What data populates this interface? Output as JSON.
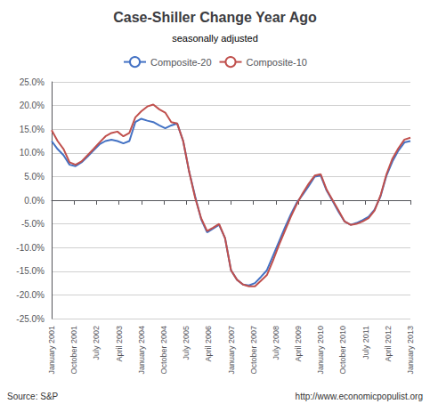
{
  "chart_data": {
    "type": "line",
    "title": "Case-Shiller Change Year Ago",
    "subtitle": "seasonally adjusted",
    "annotations": [
      "Source: S&P",
      "http://www.economicpopulist.org"
    ],
    "x": [
      0,
      1,
      2,
      3,
      4,
      5,
      6,
      7,
      8,
      9,
      10,
      11,
      12,
      13,
      14,
      15,
      16,
      17,
      18,
      19,
      20,
      21,
      22,
      23,
      24,
      25,
      26,
      27,
      28,
      29,
      30,
      31,
      32,
      33,
      34,
      35,
      36,
      37,
      38,
      39,
      40,
      41,
      42,
      43,
      44,
      45,
      46,
      47,
      48,
      49,
      50,
      51,
      52,
      53,
      54,
      55,
      56,
      57,
      58,
      59,
      60
    ],
    "series": [
      {
        "name": "Composite-20",
        "color": "#4472C4",
        "values": [
          0.125,
          0.108,
          0.095,
          0.075,
          0.072,
          0.08,
          0.092,
          0.105,
          0.118,
          0.125,
          0.128,
          0.125,
          0.12,
          0.125,
          0.165,
          0.172,
          0.168,
          0.165,
          0.158,
          0.152,
          0.158,
          0.162,
          0.125,
          0.06,
          0.008,
          -0.04,
          -0.068,
          -0.06,
          -0.052,
          -0.08,
          -0.148,
          -0.168,
          -0.178,
          -0.18,
          -0.175,
          -0.162,
          -0.148,
          -0.118,
          -0.088,
          -0.058,
          -0.03,
          -0.005,
          0.012,
          0.03,
          0.05,
          0.052,
          0.02,
          -0.002,
          -0.025,
          -0.045,
          -0.052,
          -0.048,
          -0.042,
          -0.035,
          -0.02,
          0.008,
          0.052,
          0.082,
          0.105,
          0.122,
          0.125
        ]
      },
      {
        "name": "Composite-10",
        "color": "#C0504D",
        "values": [
          0.148,
          0.125,
          0.108,
          0.08,
          0.075,
          0.082,
          0.095,
          0.108,
          0.122,
          0.135,
          0.142,
          0.145,
          0.135,
          0.142,
          0.175,
          0.188,
          0.198,
          0.202,
          0.192,
          0.185,
          0.165,
          0.162,
          0.125,
          0.06,
          0.005,
          -0.038,
          -0.065,
          -0.058,
          -0.05,
          -0.08,
          -0.148,
          -0.168,
          -0.178,
          -0.182,
          -0.182,
          -0.17,
          -0.158,
          -0.128,
          -0.095,
          -0.065,
          -0.035,
          -0.008,
          0.015,
          0.035,
          0.052,
          0.055,
          0.022,
          0.0,
          -0.022,
          -0.045,
          -0.052,
          -0.05,
          -0.045,
          -0.038,
          -0.022,
          0.01,
          0.055,
          0.088,
          0.11,
          0.128,
          0.132
        ]
      }
    ],
    "xlim": [
      0,
      60
    ],
    "xticks": [
      {
        "value": 0,
        "label": "January 2001"
      },
      {
        "value": 3.75,
        "label": "October 2001"
      },
      {
        "value": 7.5,
        "label": "July 2002"
      },
      {
        "value": 11.25,
        "label": "April 2003"
      },
      {
        "value": 15,
        "label": "January 2004"
      },
      {
        "value": 18.75,
        "label": "October 2004"
      },
      {
        "value": 22.5,
        "label": "July 2005"
      },
      {
        "value": 26.25,
        "label": "April 2006"
      },
      {
        "value": 30,
        "label": "January 2007"
      },
      {
        "value": 33.75,
        "label": "October 2007"
      },
      {
        "value": 37.5,
        "label": "July 2008"
      },
      {
        "value": 41.25,
        "label": "April 2009"
      },
      {
        "value": 45,
        "label": "January 2010"
      },
      {
        "value": 48.75,
        "label": "October 2010"
      },
      {
        "value": 52.5,
        "label": "July 2011"
      },
      {
        "value": 56.25,
        "label": "April 2012"
      },
      {
        "value": 60,
        "label": "January 2013"
      }
    ],
    "ylim": [
      -0.25,
      0.25
    ],
    "yticks": [
      {
        "value": -0.25,
        "label": "-25.0%"
      },
      {
        "value": -0.2,
        "label": "-20.0%"
      },
      {
        "value": -0.15,
        "label": "-15.0%"
      },
      {
        "value": -0.1,
        "label": "-10.0%"
      },
      {
        "value": -0.05,
        "label": "-5.0%"
      },
      {
        "value": 0.0,
        "label": "0.0%"
      },
      {
        "value": 0.05,
        "label": "5.0%"
      },
      {
        "value": 0.1,
        "label": "10.0%"
      },
      {
        "value": 0.15,
        "label": "15.0%"
      },
      {
        "value": 0.2,
        "label": "20.0%"
      },
      {
        "value": 0.25,
        "label": "25.0%"
      }
    ],
    "grid": true,
    "legend": "top"
  }
}
